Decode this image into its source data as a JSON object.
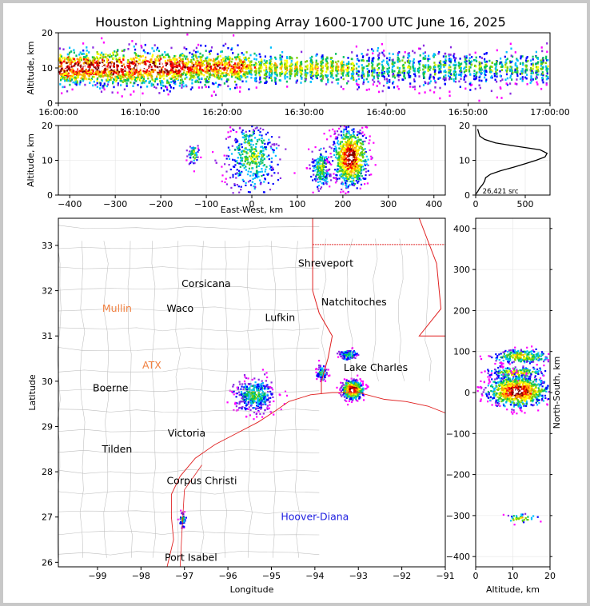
{
  "chart_data": [
    {
      "panel": "time-altitude",
      "type": "scatter",
      "title": "Houston Lightning Mapping Array 1600-1700 UTC June 16, 2025",
      "ylabel": "Altitude, km",
      "xlabel": "",
      "xlim": [
        "16:00:00",
        "17:00:00"
      ],
      "ylim": [
        0,
        20
      ],
      "xticks": [
        "16:00:00",
        "16:10:00",
        "16:20:00",
        "16:30:00",
        "16:40:00",
        "16:50:00",
        "17:00:00"
      ],
      "yticks": [
        0,
        10,
        20
      ],
      "clusters": [
        {
          "t": [
            0,
            15
          ],
          "alt": [
            6,
            14
          ],
          "density": 0.95
        },
        {
          "t": [
            15,
            23
          ],
          "alt": [
            6,
            14
          ],
          "density": 0.8
        },
        {
          "t": [
            23,
            36
          ],
          "alt": [
            7,
            13
          ],
          "density": 0.6
        },
        {
          "t": [
            36,
            60
          ],
          "alt": [
            6,
            14
          ],
          "density": 0.45
        }
      ]
    },
    {
      "panel": "east-west-altitude",
      "type": "scatter",
      "xlabel": "East-West, km",
      "ylabel": "Altitude, km",
      "xlim": [
        -425,
        425
      ],
      "ylim": [
        0,
        20
      ],
      "xticks": [
        -400,
        -300,
        -200,
        -100,
        0,
        100,
        200,
        300,
        400
      ],
      "yticks": [
        0,
        10,
        20
      ],
      "clusters": [
        {
          "x": -130,
          "alt": 12,
          "sx": 6,
          "sa": 1.6,
          "n": 60
        },
        {
          "x": 0,
          "alt": 11,
          "sx": 30,
          "sa": 5,
          "n": 420
        },
        {
          "x": 150,
          "alt": 8,
          "sx": 10,
          "sa": 3,
          "n": 200
        },
        {
          "x": 215,
          "alt": 11,
          "sx": 18,
          "sa": 4,
          "n": 900
        }
      ]
    },
    {
      "panel": "altitude-histogram",
      "type": "line",
      "xlim": [
        0,
        750
      ],
      "ylim": [
        0,
        20
      ],
      "xticks": [
        0,
        500
      ],
      "yticks": [
        0,
        10,
        20
      ],
      "annotation": "26,421 src",
      "profile": [
        {
          "alt": 0.2,
          "count": 0
        },
        {
          "alt": 1,
          "count": 20
        },
        {
          "alt": 2,
          "count": 40
        },
        {
          "alt": 3,
          "count": 70
        },
        {
          "alt": 4,
          "count": 90
        },
        {
          "alt": 5,
          "count": 100
        },
        {
          "alt": 6,
          "count": 150
        },
        {
          "alt": 7,
          "count": 250
        },
        {
          "alt": 8,
          "count": 380
        },
        {
          "alt": 9,
          "count": 500
        },
        {
          "alt": 10,
          "count": 610
        },
        {
          "alt": 11,
          "count": 700
        },
        {
          "alt": 12,
          "count": 720
        },
        {
          "alt": 13,
          "count": 650
        },
        {
          "alt": 14,
          "count": 420
        },
        {
          "alt": 15,
          "count": 200
        },
        {
          "alt": 16,
          "count": 90
        },
        {
          "alt": 17,
          "count": 40
        },
        {
          "alt": 18,
          "count": 30
        },
        {
          "alt": 19,
          "count": 20
        }
      ]
    },
    {
      "panel": "plan-view",
      "type": "scatter",
      "xlabel": "Longitude",
      "ylabel": "Latitude",
      "xlim": [
        -99.9,
        -91.0
      ],
      "ylim": [
        25.9,
        33.6
      ],
      "xticks": [
        -99,
        -98,
        -97,
        -96,
        -95,
        -94,
        -93,
        -92,
        -91
      ],
      "yticks": [
        26,
        27,
        28,
        29,
        30,
        31,
        32,
        33
      ],
      "cities": [
        {
          "name": "Shreveport",
          "lon": -93.75,
          "lat": 32.6,
          "color": "#000000"
        },
        {
          "name": "Corsicana",
          "lon": -96.5,
          "lat": 32.15,
          "color": "#000000"
        },
        {
          "name": "Natchitoches",
          "lon": -93.1,
          "lat": 31.75,
          "color": "#000000"
        },
        {
          "name": "Mullin",
          "lon": -98.55,
          "lat": 31.6,
          "color": "#f08040"
        },
        {
          "name": "Waco",
          "lon": -97.1,
          "lat": 31.6,
          "color": "#000000"
        },
        {
          "name": "Lufkin",
          "lon": -94.8,
          "lat": 31.4,
          "color": "#000000"
        },
        {
          "name": "ATX",
          "lon": -97.75,
          "lat": 30.35,
          "color": "#f08040"
        },
        {
          "name": "Lake Charles",
          "lon": -92.6,
          "lat": 30.3,
          "color": "#000000"
        },
        {
          "name": "Boerne",
          "lon": -98.7,
          "lat": 29.85,
          "color": "#000000"
        },
        {
          "name": "Victoria",
          "lon": -96.95,
          "lat": 28.85,
          "color": "#000000"
        },
        {
          "name": "Tilden",
          "lon": -98.55,
          "lat": 28.5,
          "color": "#000000"
        },
        {
          "name": "Corpus Christi",
          "lon": -96.6,
          "lat": 27.8,
          "color": "#000000"
        },
        {
          "name": "Hoover-Diana",
          "lon": -94.0,
          "lat": 27.0,
          "color": "#2020e0"
        },
        {
          "name": "Port Isabel",
          "lon": -96.85,
          "lat": 26.1,
          "color": "#000000"
        }
      ],
      "clusters": [
        {
          "lon": -95.4,
          "lat": 29.7,
          "slon": 0.22,
          "slat": 0.18,
          "n": 420
        },
        {
          "lon": -93.15,
          "lat": 29.83,
          "slon": 0.12,
          "slat": 0.1,
          "n": 500
        },
        {
          "lon": -93.85,
          "lat": 30.2,
          "slon": 0.06,
          "slat": 0.08,
          "n": 90
        },
        {
          "lon": -93.25,
          "lat": 30.6,
          "slon": 0.1,
          "slat": 0.06,
          "n": 120
        },
        {
          "lon": -97.05,
          "lat": 26.95,
          "slon": 0.04,
          "slat": 0.08,
          "n": 40
        }
      ]
    },
    {
      "panel": "altitude-north-south",
      "type": "scatter",
      "xlabel": "Altitude, km",
      "ylabel": "North-South, km",
      "xlim": [
        0,
        20
      ],
      "ylim": [
        -425,
        425
      ],
      "xticks": [
        0,
        10,
        20
      ],
      "yticks": [
        -400,
        -300,
        -200,
        -100,
        0,
        100,
        200,
        300,
        400
      ],
      "clusters": [
        {
          "alt": 12,
          "ns": 90,
          "sa": 4,
          "sn": 8,
          "n": 260
        },
        {
          "alt": 11,
          "ns": 50,
          "sa": 4,
          "sn": 8,
          "n": 200
        },
        {
          "alt": 11,
          "ns": 5,
          "sa": 4,
          "sn": 18,
          "n": 900
        },
        {
          "alt": 12,
          "ns": -305,
          "sa": 2,
          "sn": 6,
          "n": 40
        }
      ]
    }
  ]
}
